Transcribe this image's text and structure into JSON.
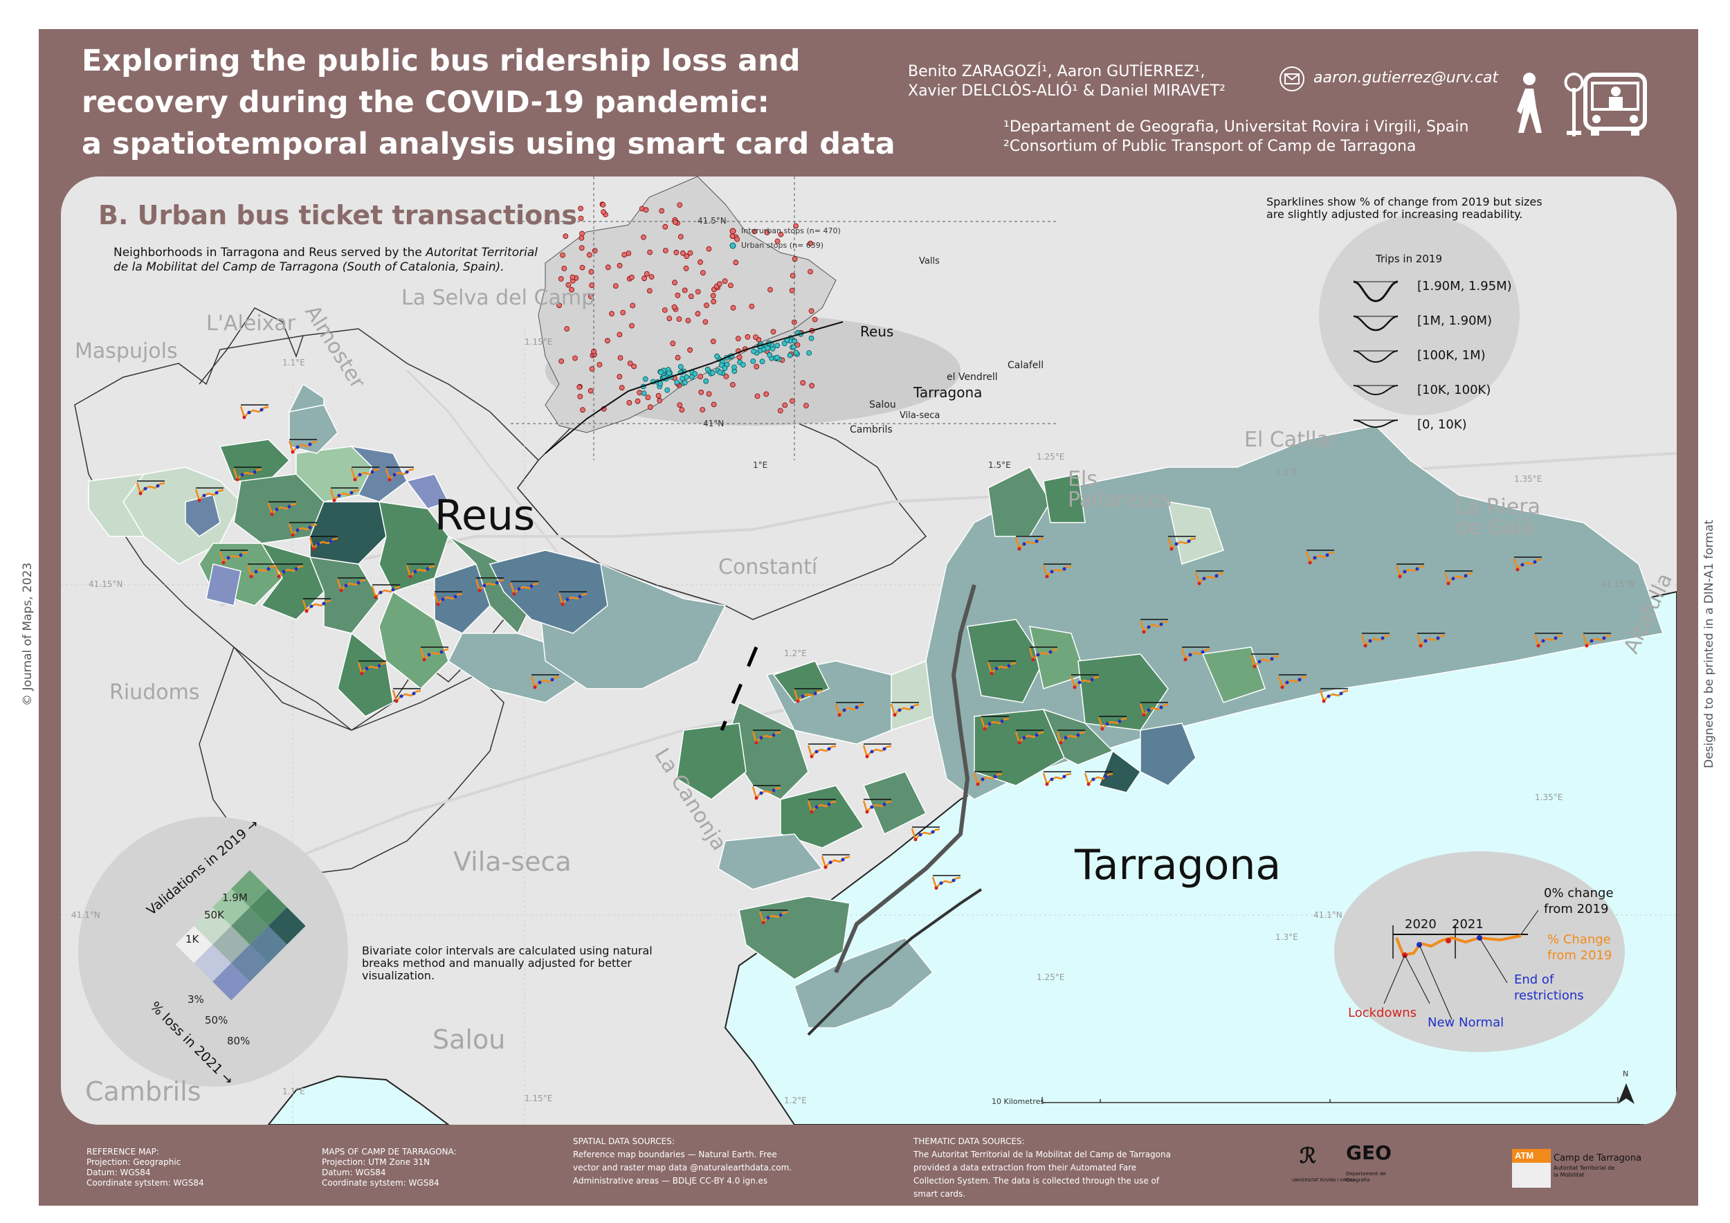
{
  "header": {
    "title_lines": [
      "Exploring the public bus ridership loss and",
      "recovery during the COVID-19 pandemic:",
      "a spatiotemporal analysis using smart card data"
    ],
    "authors_line1": "Benito ZARAGOZÍ¹, Aaron GUTÍERREZ¹,",
    "authors_line2": "Xavier DELCLÒS-ALIÓ¹ & Daniel MIRAVET²",
    "email": "aaron.gutierrez@urv.cat",
    "affiliation1": "¹Departament de Geografia, Universitat Rovira i Virgili, Spain",
    "affiliation2": "²Consortium of Public Transport of Camp de Tarragona",
    "icons": [
      "mail-icon",
      "pedestrian-icon",
      "bus-stop-icon",
      "bus-icon"
    ]
  },
  "panel": {
    "section_title": "B. Urban bus ticket transactions",
    "intro_line1_plain": "Neighborhoods in Tarragona and Reus served by the ",
    "intro_line1_italic": "Autoritat Territorial",
    "intro_line2_italic": "de la Mobilitat del Camp de Tarragona (South of Catalonia, Spain).",
    "sparkline_note": "Sparklines show % of change from 2019 but sizes are slightly adjusted for increasing readability.",
    "bivariate_note": "Bivariate color intervals are calculated using natural breaks method and manually adjusted for better visualization."
  },
  "place_names": {
    "la_selva": "La Selva del Camp",
    "laleixar": "L'Aleixar",
    "maspujols": "Maspujols",
    "almoster": "Almoster",
    "constanti": "Constantí",
    "riudoms": "Riudoms",
    "la_canonja": "La Canonja",
    "vila_seca": "Vila-seca",
    "salou": "Salou",
    "cambrils": "Cambrils",
    "els_pallaresos_1": "Els",
    "els_pallaresos_2": "Pallaresos",
    "el_catllar": "El Catllar",
    "la_riera_1": "La Riera",
    "la_riera_2": "de Gaià",
    "altafulla": "Altafulla",
    "reus": "Reus",
    "tarragona": "Tarragona"
  },
  "graticule": {
    "lon_1_1": "1.1°E",
    "lon_1_15": "1.15°E",
    "lon_1_2": "1.2°E",
    "lon_1_25": "1.25°E",
    "lon_1_3": "1.3°E",
    "lon_1_35": "1.35°E",
    "lat_41_15": "41.15°N",
    "lat_41_1": "41.1°N"
  },
  "inset": {
    "lat_top": "41.5°N",
    "lat_bottom": "41°N",
    "lon_left": "1°E",
    "lon_right": "1.5°E",
    "legend_interurban": "Interurban stops (n= 470)",
    "legend_urban": "Urban stops (n= 639)",
    "labels": {
      "valls": "Valls",
      "reus": "Reus",
      "tarragona": "Tarragona",
      "salou": "Salou",
      "vila_seca": "Vila-seca",
      "cambrils": "Cambrils",
      "el_vendrell": "el Vendrell",
      "calafell": "Calafell"
    }
  },
  "trips_legend": {
    "title": "Trips in 2019",
    "classes": [
      "[1.90M, 1.95M)",
      "[1M, 1.90M)",
      "[100K, 1M)",
      "[10K, 100K)",
      "[0, 10K)"
    ]
  },
  "bivariate_legend": {
    "axis_validations": "Validations in 2019 →",
    "axis_loss": "% loss in 2021 →",
    "val_breaks": [
      "1K",
      "50K",
      "1.9M"
    ],
    "loss_breaks": [
      "3%",
      "50%",
      "80%"
    ],
    "grid_colors": [
      "#efefef",
      "#c9dccb",
      "#9fc8a6",
      "#70a67c",
      "#c2c8dd",
      "#9eb3ae",
      "#5d9171",
      "#4f8a63",
      "#8290c2",
      "#6a86a6",
      "#5b7f97",
      "#2e5b58"
    ]
  },
  "example_legend": {
    "zero_change": "0% change",
    "from_2019": "from 2019",
    "year_2020": "2020",
    "year_2021": "2021",
    "pct_change_1": "% Change",
    "pct_change_2": "from 2019",
    "end_restrictions_1": "End of",
    "end_restrictions_2": "restrictions",
    "lockdowns": "Lockdowns",
    "new_normal": "New Normal"
  },
  "scale_bar": {
    "label": "10 Kilometres"
  },
  "north_arrow": {
    "label": "N"
  },
  "footer": {
    "ref_map": [
      "REFERENCE MAP:",
      "Projection: Geographic",
      "Datum: WGS84",
      "Coordinate sytstem: WGS84"
    ],
    "maps_ct": [
      "MAPS OF CAMP DE TARRAGONA:",
      "Projection: UTM Zone 31N",
      "Datum: WGS84",
      "Coordinate sytstem: WGS84"
    ],
    "spatial": [
      "SPATIAL DATA SOURCES:",
      "Reference map boundaries — Natural Earth. Free",
      "vector and raster map data @naturalearthdata.com.",
      "Administrative areas — BDLJE CC-BY 4.0 ign.es"
    ],
    "thematic": [
      "THEMATIC DATA SOURCES:",
      "The Autoritat Territorial de la Mobilitat del Camp de Tarragona",
      "provided a data extraction from their Automated Fare",
      "Collection System. The data is collected through the use of",
      "smart cards."
    ],
    "logo_urv": "UNIVERSITAT ROVIRA I VIRGILI",
    "logo_geo": "GEO",
    "logo_geo_sub": "Departament de Geografia",
    "logo_atm": "ATM",
    "logo_atm_name": "Camp de Tarragona",
    "logo_atm_sub": "Autoritat Territorial de la Mobilitat"
  },
  "side_text": {
    "left": "© Journal of Maps, 2023",
    "right": "Designed to be printed in a DIN-A1 format"
  },
  "colors": {
    "frame": "#8a6b6a",
    "sea": "#dcfbfc",
    "land": "#e6e6e6",
    "region_base": "#8fb0ae",
    "dark_green": "#4f8a63",
    "light_green": "#c9dccb",
    "blue": "#5b7fa8",
    "change_orange": "#f28a1a",
    "lockdown_red": "#d62020",
    "new_normal_blue": "#2030c8"
  }
}
